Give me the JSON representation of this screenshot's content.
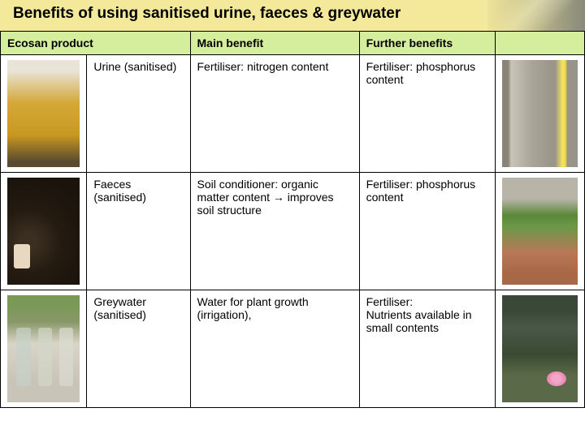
{
  "title": "Benefits of using sanitised urine, faeces & greywater",
  "headers": {
    "product": "Ecosan product",
    "main": "Main benefit",
    "further": "Further benefits"
  },
  "rows": [
    {
      "name": "Urine (sanitised)",
      "main": "Fertiliser: nitrogen content",
      "further": "Fertiliser: phosphorus content",
      "left_img": "img-urine-glass",
      "right_img": "img-onion-roots"
    },
    {
      "name": "Faeces (sanitised)",
      "main": "Soil conditioner: organic matter content → improves soil structure",
      "further": "Fertiliser: phosphorus content",
      "left_img": "img-faeces",
      "right_img": "img-pots"
    },
    {
      "name": "Greywater (sanitised)",
      "main": "Water for plant growth (irrigation),",
      "further": "Fertiliser:\nNutrients available in small contents",
      "left_img": "img-greywater",
      "right_img": "img-lily"
    }
  ],
  "colors": {
    "title_bg": "#f4e89a",
    "header_bg": "#d5ee9d",
    "border": "#000000",
    "text": "#000000"
  }
}
